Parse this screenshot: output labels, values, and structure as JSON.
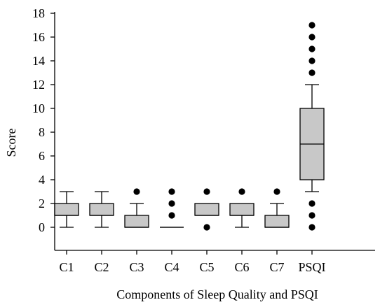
{
  "chart_data": {
    "type": "boxplot",
    "title": "",
    "xlabel": "Components of Sleep Quality and PSQI",
    "ylabel": "Score",
    "ylim": [
      -2,
      18
    ],
    "yticks": [
      0,
      2,
      4,
      6,
      8,
      10,
      12,
      14,
      16,
      18
    ],
    "categories": [
      "C1",
      "C2",
      "C3",
      "C4",
      "C5",
      "C6",
      "C7",
      "PSQI"
    ],
    "grid": false,
    "colors": {
      "box_fill": "#c8c8c8",
      "line": "#000000"
    },
    "boxes": [
      {
        "category": "C1",
        "whisker_low": 0,
        "q1": 1,
        "median": 1,
        "q3": 2,
        "whisker_high": 3,
        "outliers": []
      },
      {
        "category": "C2",
        "whisker_low": 0,
        "q1": 1,
        "median": 1,
        "q3": 2,
        "whisker_high": 3,
        "outliers": []
      },
      {
        "category": "C3",
        "whisker_low": 0,
        "q1": 0,
        "median": 0,
        "q3": 1,
        "whisker_high": 2,
        "outliers": [
          3
        ]
      },
      {
        "category": "C4",
        "whisker_low": 0,
        "q1": 0,
        "median": 0,
        "q3": 0,
        "whisker_high": 0,
        "outliers": [
          1,
          2,
          3
        ]
      },
      {
        "category": "C5",
        "whisker_low": 1,
        "q1": 1,
        "median": 1,
        "q3": 2,
        "whisker_high": 2,
        "outliers": [
          0,
          3
        ]
      },
      {
        "category": "C6",
        "whisker_low": 0,
        "q1": 1,
        "median": 1,
        "q3": 2,
        "whisker_high": 2,
        "outliers": [
          3
        ]
      },
      {
        "category": "C7",
        "whisker_low": 0,
        "q1": 0,
        "median": 0,
        "q3": 1,
        "whisker_high": 2,
        "outliers": [
          3
        ]
      },
      {
        "category": "PSQI",
        "whisker_low": 3,
        "q1": 4,
        "median": 7,
        "q3": 10,
        "whisker_high": 12,
        "outliers": [
          0,
          1,
          2,
          13,
          14,
          15,
          16,
          17
        ]
      }
    ]
  }
}
